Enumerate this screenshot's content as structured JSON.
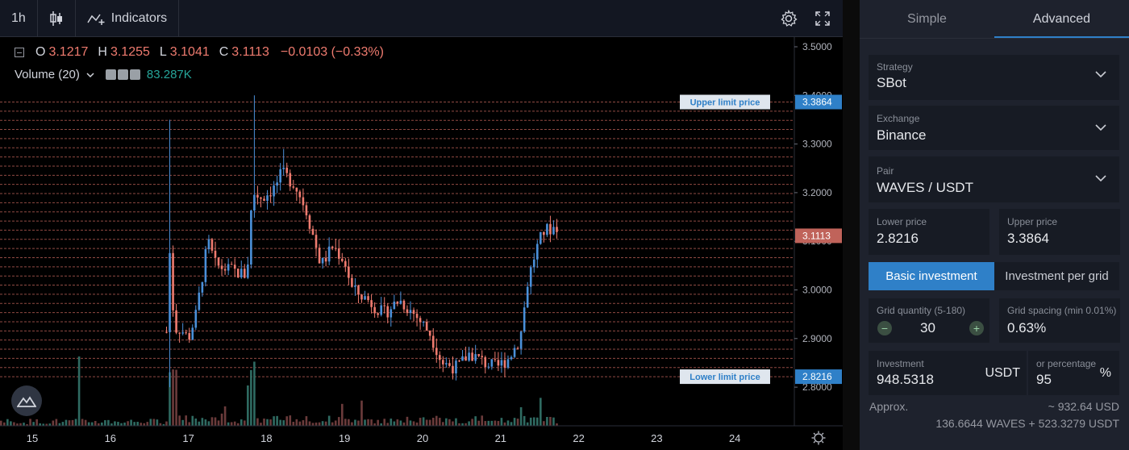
{
  "toolbar": {
    "interval": "1h",
    "indicators_label": "Indicators"
  },
  "legend": {
    "open_label": "O",
    "open": "3.1217",
    "high_label": "H",
    "high": "3.1255",
    "low_label": "L",
    "low": "3.1041",
    "close_label": "C",
    "close": "3.1113",
    "change": "−0.0103 (−0.33%)",
    "volume_label": "Volume (20)",
    "volume_value": "83.287K"
  },
  "chart_data": {
    "type": "candlestick",
    "price_axis_ticks": [
      "3.5000",
      "3.4000",
      "3.3000",
      "3.2000",
      "3.1000",
      "3.0000",
      "2.9000",
      "2.8000"
    ],
    "ylim": [
      2.73,
      3.51
    ],
    "time_axis_ticks": [
      "15",
      "16",
      "17",
      "18",
      "19",
      "20",
      "21",
      "22",
      "23",
      "24"
    ],
    "upper_limit_label": "Upper limit price",
    "upper_limit_price": "3.3864",
    "lower_limit_label": "Lower limit price",
    "lower_limit_price": "2.8216",
    "last_price": "3.1113",
    "grid_levels": 30,
    "colors": {
      "up": "#4a90d9",
      "down": "#ef7b6f",
      "grid_line": "#c0635a",
      "upper_tag": "#2f80c8"
    }
  },
  "side": {
    "tabs": [
      "Simple",
      "Advanced"
    ],
    "active_tab": "Advanced",
    "strategy_label": "Strategy",
    "strategy_value": "SBot",
    "exchange_label": "Exchange",
    "exchange_value": "Binance",
    "pair_label": "Pair",
    "pair_value": "WAVES / USDT",
    "lower_price_label": "Lower price",
    "lower_price_value": "2.8216",
    "upper_price_label": "Upper price",
    "upper_price_value": "3.3864",
    "basic_investment": "Basic investment",
    "investment_per_grid": "Investment per grid",
    "grid_qty_label": "Grid quantity (5-180)",
    "grid_qty_value": "30",
    "grid_spacing_label": "Grid spacing (min 0.01%)",
    "grid_spacing_value": "0.63%",
    "investment_label": "Investment",
    "investment_value": "948.5318",
    "investment_unit": "USDT",
    "percentage_label": "or percentage",
    "percentage_value": "95",
    "percentage_unit": "%",
    "approx_label": "Approx.",
    "approx_usd": "~ 932.64 USD",
    "approx_breakdown": "136.6644 WAVES + 523.3279 USDT"
  }
}
